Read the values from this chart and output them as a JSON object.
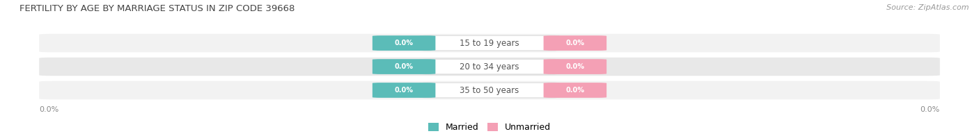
{
  "title": "FERTILITY BY AGE BY MARRIAGE STATUS IN ZIP CODE 39668",
  "source": "Source: ZipAtlas.com",
  "categories": [
    "15 to 19 years",
    "20 to 34 years",
    "35 to 50 years"
  ],
  "married_values": [
    0.0,
    0.0,
    0.0
  ],
  "unmarried_values": [
    0.0,
    0.0,
    0.0
  ],
  "married_color": "#5bbcb8",
  "unmarried_color": "#f4a0b5",
  "center_label_color": "#555555",
  "title_color": "#444444",
  "source_color": "#999999",
  "axis_label_color": "#888888",
  "background_color": "#ffffff",
  "row_bg_color_light": "#f2f2f2",
  "row_bg_color_dark": "#e8e8e8",
  "left_axis_label": "0.0%",
  "right_axis_label": "0.0%",
  "legend_married": "Married",
  "legend_unmarried": "Unmarried"
}
